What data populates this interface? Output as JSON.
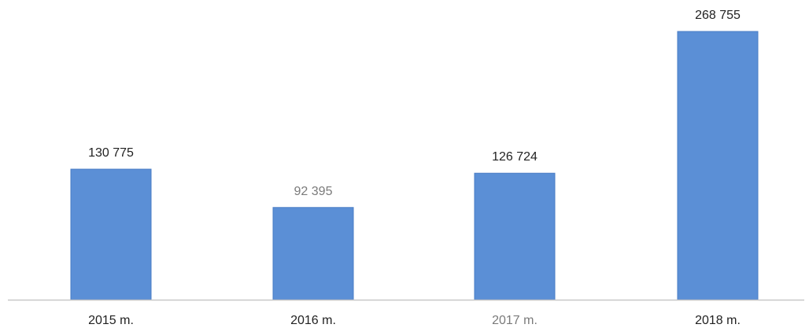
{
  "chart_data": {
    "type": "bar",
    "categories": [
      "2015 m.",
      "2016 m.",
      "2017 m.",
      "2018 m."
    ],
    "values": [
      130775,
      92395,
      126724,
      268755
    ],
    "value_labels": [
      "130 775",
      "92 395",
      "126 724",
      "268 755"
    ],
    "title": "",
    "xlabel": "",
    "ylabel": "",
    "ylim": [
      0,
      268755
    ],
    "grid": false,
    "legend": "none",
    "colors": {
      "bar": "#5b8fd6",
      "bar_edge": "#4a7cc4",
      "axis": "#c8c8c8",
      "label_text": "#222222",
      "label_text_faded": "#7a7a7a"
    },
    "faded_labels": {
      "value_indices": [
        1
      ],
      "category_indices": [
        2
      ]
    }
  }
}
